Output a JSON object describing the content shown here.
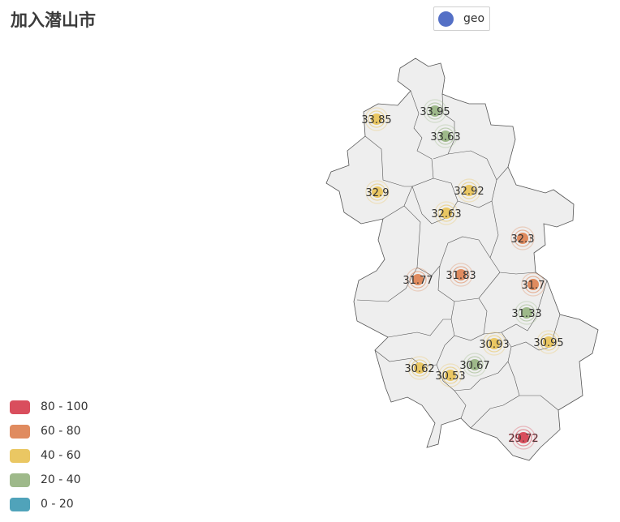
{
  "title": "加入潜山市",
  "legend": {
    "series_name": "geo",
    "series_color": "#5470c6"
  },
  "visual_map": [
    {
      "label": "80 - 100",
      "color": "#d94e5d"
    },
    {
      "label": "60 - 80",
      "color": "#e08b5f"
    },
    {
      "label": "40 - 60",
      "color": "#eac763"
    },
    {
      "label": "20 - 40",
      "color": "#9eb98a"
    },
    {
      "label": "0 - 20",
      "color": "#50a3ba"
    }
  ],
  "points": [
    {
      "label": "33.95",
      "color": "#9eb98a"
    },
    {
      "label": "33.85",
      "color": "#eac763"
    },
    {
      "label": "33.63",
      "color": "#9eb98a"
    },
    {
      "label": "32.9",
      "color": "#eac763"
    },
    {
      "label": "32.92",
      "color": "#eac763"
    },
    {
      "label": "32.63",
      "color": "#eac763"
    },
    {
      "label": "32.3",
      "color": "#e08b5f"
    },
    {
      "label": "31.83",
      "color": "#e08b5f"
    },
    {
      "label": "31.77",
      "color": "#e08b5f"
    },
    {
      "label": "31.7",
      "color": "#e08b5f"
    },
    {
      "label": "31.33",
      "color": "#9eb98a"
    },
    {
      "label": "30.93",
      "color": "#eac763"
    },
    {
      "label": "30.95",
      "color": "#eac763"
    },
    {
      "label": "30.67",
      "color": "#9eb98a"
    },
    {
      "label": "30.62",
      "color": "#eac763"
    },
    {
      "label": "30.53",
      "color": "#eac763"
    },
    {
      "label": "29.72",
      "color": "#d94e5d"
    }
  ]
}
